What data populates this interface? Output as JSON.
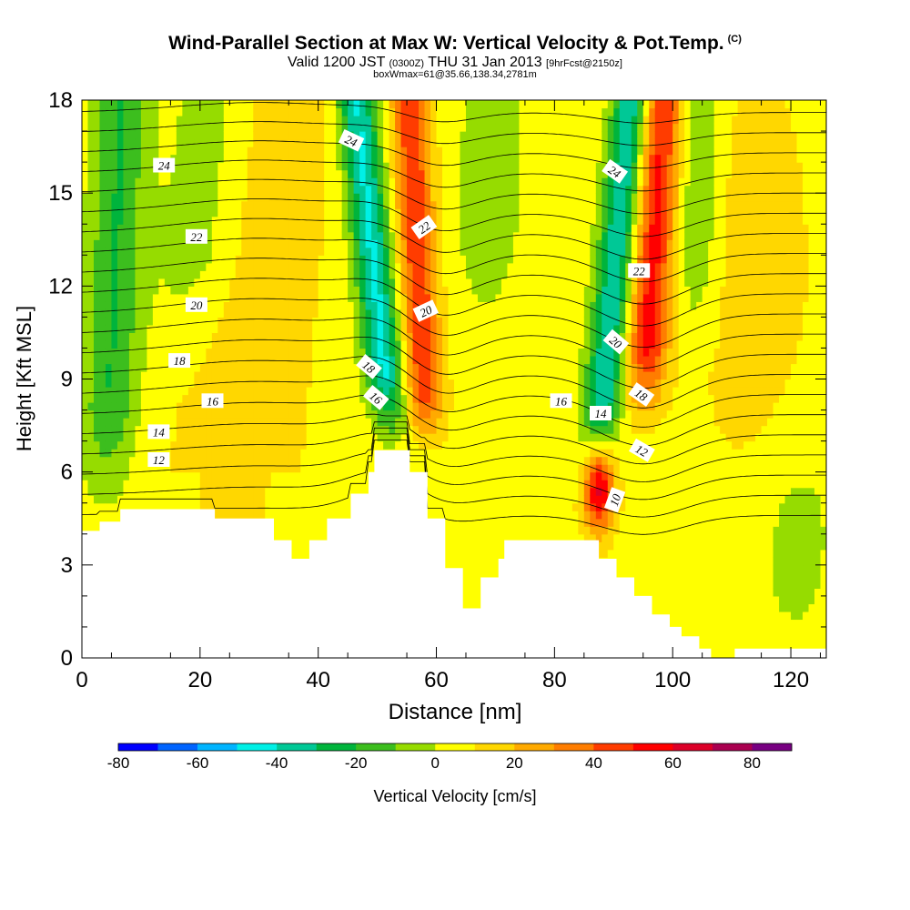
{
  "chart_data": {
    "type": "heatmap",
    "title": "Wind-Parallel Section at Max W: Vertical Velocity & Pot.Temp.",
    "title_mark": "(C)",
    "subtitle": {
      "prefix": "Valid 1200 JST",
      "utc": "(0300Z)",
      "date": "THU 31 Jan 2013",
      "forecast": "[9hrFcst@2150z]"
    },
    "subtitle2": "boxWmax=61@35.66,138.34,2781m",
    "xlabel": "Distance [nm]",
    "ylabel": "Height [Kft MSL]",
    "xlim": [
      0,
      126
    ],
    "ylim": [
      0,
      18
    ],
    "x_ticks": [
      0,
      20,
      40,
      60,
      80,
      100,
      120
    ],
    "y_ticks": [
      0,
      3,
      6,
      9,
      12,
      15,
      18
    ],
    "colorbar": {
      "label": "Vertical Velocity [cm/s]",
      "min": -80,
      "max": 90,
      "step": 10,
      "tick_labels": [
        -80,
        -60,
        -40,
        -20,
        0,
        20,
        40,
        60,
        80
      ],
      "colors": [
        "#0000ff",
        "#0064ff",
        "#00b4ff",
        "#00f0e6",
        "#00c896",
        "#00b43c",
        "#3cbe1e",
        "#96dc00",
        "#ffff00",
        "#ffd700",
        "#ffaa00",
        "#ff7d00",
        "#ff3c00",
        "#ff0000",
        "#dc0028",
        "#aa0050",
        "#780082"
      ]
    },
    "theta_contour_labels": [
      {
        "label": "24",
        "x": 13.9,
        "y": 15.9,
        "rot": 0
      },
      {
        "label": "22",
        "x": 19.4,
        "y": 13.6,
        "rot": 0
      },
      {
        "label": "20",
        "x": 19.4,
        "y": 11.4,
        "rot": 0
      },
      {
        "label": "18",
        "x": 16.5,
        "y": 9.6,
        "rot": 0
      },
      {
        "label": "16",
        "x": 22.1,
        "y": 8.3,
        "rot": 0
      },
      {
        "label": "14",
        "x": 13.0,
        "y": 7.3,
        "rot": 0
      },
      {
        "label": "12",
        "x": 13.0,
        "y": 6.4,
        "rot": 0
      },
      {
        "label": "24",
        "x": 45.6,
        "y": 16.7,
        "rot": 25
      },
      {
        "label": "22",
        "x": 57.9,
        "y": 13.9,
        "rot": -35
      },
      {
        "label": "20",
        "x": 58.2,
        "y": 11.2,
        "rot": -25
      },
      {
        "label": "18",
        "x": 48.6,
        "y": 9.4,
        "rot": 40
      },
      {
        "label": "16",
        "x": 49.8,
        "y": 8.4,
        "rot": 40
      },
      {
        "label": "24",
        "x": 90.2,
        "y": 15.7,
        "rot": 35
      },
      {
        "label": "22",
        "x": 94.3,
        "y": 12.5,
        "rot": 0
      },
      {
        "label": "20",
        "x": 90.4,
        "y": 10.2,
        "rot": 40
      },
      {
        "label": "18",
        "x": 94.7,
        "y": 8.5,
        "rot": 35
      },
      {
        "label": "16",
        "x": 81.1,
        "y": 8.3,
        "rot": 0
      },
      {
        "label": "14",
        "x": 87.8,
        "y": 7.9,
        "rot": 0
      },
      {
        "label": "12",
        "x": 94.8,
        "y": 6.7,
        "rot": 30
      },
      {
        "label": "10",
        "x": 90.2,
        "y": 5.1,
        "rot": -70
      }
    ],
    "terrain": [
      [
        0,
        4.1
      ],
      [
        3,
        4.1
      ],
      [
        3,
        4.4
      ],
      [
        6.5,
        4.4
      ],
      [
        6.5,
        4.8
      ],
      [
        22.5,
        4.8
      ],
      [
        22.5,
        4.5
      ],
      [
        32.5,
        4.5
      ],
      [
        32.5,
        3.8
      ],
      [
        35.5,
        3.8
      ],
      [
        35.5,
        3.2
      ],
      [
        38.5,
        3.2
      ],
      [
        38.5,
        3.8
      ],
      [
        41.5,
        3.8
      ],
      [
        41.5,
        4.5
      ],
      [
        45.5,
        4.5
      ],
      [
        45.5,
        5.3
      ],
      [
        48.5,
        5.3
      ],
      [
        48.5,
        6.0
      ],
      [
        49.5,
        6.0
      ],
      [
        49.5,
        6.7
      ],
      [
        55.5,
        6.7
      ],
      [
        55.5,
        6.0
      ],
      [
        58.5,
        6.0
      ],
      [
        58.5,
        4.5
      ],
      [
        61.5,
        4.5
      ],
      [
        61.5,
        3.8
      ],
      [
        61.5,
        2.9
      ],
      [
        64.5,
        2.9
      ],
      [
        64.5,
        1.6
      ],
      [
        67.5,
        1.6
      ],
      [
        67.5,
        2.6
      ],
      [
        70.5,
        2.6
      ],
      [
        70.5,
        3.2
      ],
      [
        71.5,
        3.2
      ],
      [
        71.5,
        3.8
      ],
      [
        87.5,
        3.8
      ],
      [
        87.5,
        3.2
      ],
      [
        90.5,
        3.2
      ],
      [
        90.5,
        2.6
      ],
      [
        93.5,
        2.6
      ],
      [
        93.5,
        2.0
      ],
      [
        96.5,
        2.0
      ],
      [
        96.5,
        1.4
      ],
      [
        99.5,
        1.4
      ],
      [
        99.5,
        1.0
      ],
      [
        101.5,
        1.0
      ],
      [
        101.5,
        0.7
      ],
      [
        104.5,
        0.7
      ],
      [
        104.5,
        0.3
      ],
      [
        106.5,
        0.3
      ],
      [
        106.5,
        0.0
      ],
      [
        110.5,
        0.0
      ],
      [
        110.5,
        0.3
      ],
      [
        126,
        0.3
      ]
    ]
  }
}
